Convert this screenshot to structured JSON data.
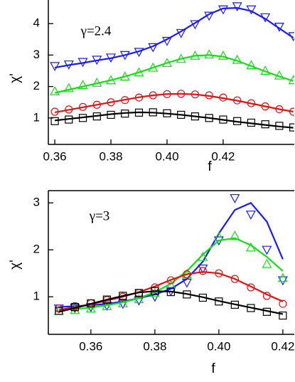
{
  "chart_data": [
    {
      "type": "line",
      "annotation": "γ=2.4",
      "x_label": "f",
      "y_label": "χ'",
      "xlim": [
        0.3577,
        0.4456
      ],
      "ylim": [
        0.16,
        4.75
      ],
      "xticks": [
        0.36,
        0.38,
        {
          "value": 0.4,
          "label": "0.40"
        },
        0.42
      ],
      "yticks": [
        1,
        2,
        3,
        4
      ],
      "x": [
        0.36,
        0.365,
        0.37,
        0.375,
        0.38,
        0.385,
        0.39,
        0.395,
        0.4,
        0.405,
        0.41,
        0.415,
        0.42,
        0.425,
        0.43,
        0.435,
        0.44,
        0.445
      ],
      "series": [
        {
          "marker": "triangle-down",
          "color": "#1a1aff",
          "values": [
            2.65,
            2.7,
            2.78,
            2.85,
            2.92,
            3.0,
            3.1,
            3.25,
            3.45,
            3.7,
            3.98,
            4.25,
            4.45,
            4.55,
            4.45,
            4.2,
            3.9,
            3.6
          ]
        },
        {
          "color": "#1a1aff",
          "values": [
            2.6,
            2.68,
            2.75,
            2.83,
            2.9,
            3.0,
            3.12,
            3.28,
            3.5,
            3.75,
            4.02,
            4.3,
            4.48,
            4.5,
            4.4,
            4.15,
            3.85,
            3.55
          ]
        },
        {
          "marker": "triangle-up",
          "color": "#12e012",
          "values": [
            1.85,
            1.95,
            2.05,
            2.12,
            2.2,
            2.32,
            2.45,
            2.6,
            2.75,
            2.88,
            2.98,
            3.02,
            2.98,
            2.85,
            2.68,
            2.5,
            2.35,
            2.2
          ]
        },
        {
          "color": "#12e012",
          "values": [
            1.8,
            1.9,
            2.0,
            2.1,
            2.2,
            2.32,
            2.45,
            2.6,
            2.75,
            2.88,
            2.98,
            3.0,
            2.95,
            2.82,
            2.65,
            2.48,
            2.32,
            2.18
          ]
        },
        {
          "marker": "circle",
          "color": "#e81010",
          "values": [
            1.2,
            1.27,
            1.35,
            1.42,
            1.5,
            1.57,
            1.65,
            1.72,
            1.76,
            1.77,
            1.75,
            1.72,
            1.65,
            1.56,
            1.47,
            1.37,
            1.28,
            1.2
          ]
        },
        {
          "color": "#e81010",
          "values": [
            1.18,
            1.26,
            1.34,
            1.42,
            1.5,
            1.58,
            1.66,
            1.72,
            1.76,
            1.77,
            1.75,
            1.7,
            1.63,
            1.55,
            1.46,
            1.37,
            1.28,
            1.2
          ]
        },
        {
          "marker": "square",
          "color": "#000000",
          "values": [
            0.9,
            0.95,
            1.0,
            1.05,
            1.1,
            1.14,
            1.17,
            1.18,
            1.15,
            1.1,
            1.05,
            1.0,
            0.95,
            0.9,
            0.85,
            0.8,
            0.75,
            0.7
          ]
        },
        {
          "color": "#000000",
          "values": [
            0.92,
            0.97,
            1.02,
            1.07,
            1.12,
            1.16,
            1.18,
            1.17,
            1.14,
            1.1,
            1.05,
            1.0,
            0.94,
            0.88,
            0.83,
            0.78,
            0.73,
            0.69
          ]
        }
      ]
    },
    {
      "type": "line",
      "annotation": "γ=3",
      "x_label": "f",
      "y_label": "χ'",
      "xlim": [
        0.3467,
        0.4238
      ],
      "ylim": [
        0.2,
        3.26
      ],
      "xticks": [
        0.36,
        0.38,
        {
          "value": 0.4,
          "label": "0.40"
        },
        0.42
      ],
      "yticks": [
        1,
        2,
        3
      ],
      "x": [
        0.35,
        0.355,
        0.36,
        0.365,
        0.37,
        0.375,
        0.38,
        0.385,
        0.39,
        0.395,
        0.4,
        0.405,
        0.41,
        0.415,
        0.42
      ],
      "series": [
        {
          "marker": "triangle-down",
          "color": "#1a1aff",
          "values": [
            0.75,
            0.76,
            0.78,
            0.81,
            0.85,
            0.92,
            1.0,
            1.12,
            1.3,
            1.6,
            2.2,
            3.1,
            2.75,
            2.0,
            1.35
          ]
        },
        {
          "color": "#1a1aff",
          "values": [
            0.78,
            0.8,
            0.82,
            0.85,
            0.9,
            0.97,
            1.05,
            1.17,
            1.38,
            1.75,
            2.35,
            2.85,
            3.0,
            2.6,
            1.8
          ]
        },
        {
          "marker": "triangle-up",
          "color": "#12e012",
          "values": [
            0.7,
            0.72,
            0.75,
            0.8,
            0.86,
            0.95,
            1.08,
            1.25,
            1.48,
            1.85,
            2.28,
            2.3,
            2.05,
            1.7,
            1.4
          ]
        },
        {
          "color": "#12e012",
          "values": [
            0.72,
            0.74,
            0.77,
            0.82,
            0.88,
            0.97,
            1.1,
            1.28,
            1.55,
            1.9,
            2.2,
            2.25,
            2.1,
            1.85,
            1.55
          ]
        },
        {
          "marker": "circle",
          "color": "#e81010",
          "values": [
            0.75,
            0.8,
            0.86,
            0.93,
            1.0,
            1.08,
            1.2,
            1.35,
            1.48,
            1.55,
            1.5,
            1.38,
            1.2,
            1.02,
            0.85
          ]
        },
        {
          "color": "#e81010",
          "values": [
            0.72,
            0.78,
            0.84,
            0.92,
            1.0,
            1.1,
            1.22,
            1.36,
            1.48,
            1.53,
            1.5,
            1.38,
            1.22,
            1.05,
            0.9
          ]
        },
        {
          "marker": "square",
          "color": "#000000",
          "values": [
            0.7,
            0.78,
            0.86,
            0.94,
            1.02,
            1.08,
            1.12,
            1.1,
            1.05,
            0.98,
            0.9,
            0.83,
            0.76,
            0.68,
            0.6
          ]
        },
        {
          "color": "#000000",
          "values": [
            0.68,
            0.76,
            0.85,
            0.94,
            1.02,
            1.09,
            1.12,
            1.11,
            1.06,
            0.99,
            0.91,
            0.84,
            0.77,
            0.7,
            0.63
          ]
        }
      ]
    }
  ]
}
